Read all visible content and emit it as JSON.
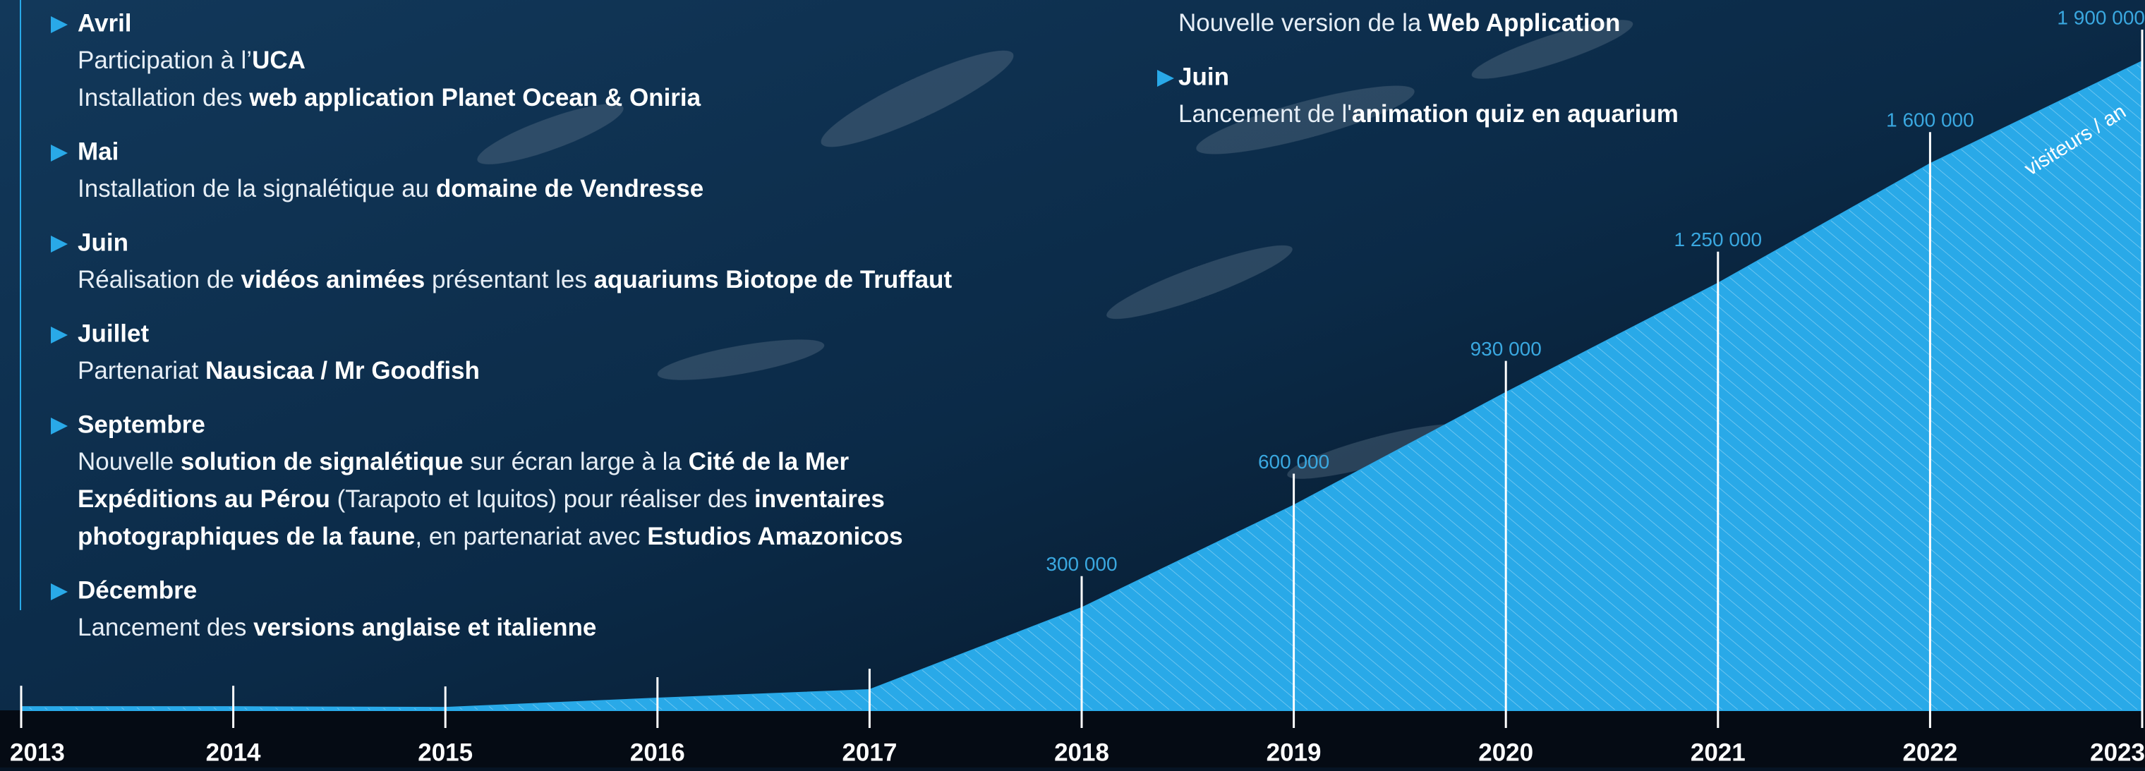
{
  "timeline": {
    "entries": [
      {
        "month": "Avril",
        "lines": [
          [
            {
              "text": "Participation à l’",
              "bold": false
            },
            {
              "text": "UCA",
              "bold": true
            }
          ],
          [
            {
              "text": "Installation des ",
              "bold": false
            },
            {
              "text": "web application Planet Ocean & Oniria",
              "bold": true
            }
          ]
        ]
      },
      {
        "month": "Mai",
        "lines": [
          [
            {
              "text": "Installation de la signalétique au ",
              "bold": false
            },
            {
              "text": "domaine de Vendresse",
              "bold": true
            }
          ]
        ]
      },
      {
        "month": "Juin",
        "lines": [
          [
            {
              "text": "Réalisation de ",
              "bold": false
            },
            {
              "text": "vidéos animées",
              "bold": true
            },
            {
              "text": " présentant les ",
              "bold": false
            },
            {
              "text": "aquariums Biotope de Truffaut",
              "bold": true
            }
          ]
        ]
      },
      {
        "month": "Juillet",
        "lines": [
          [
            {
              "text": "Partenariat ",
              "bold": false
            },
            {
              "text": "Nausicaa / Mr Goodfish",
              "bold": true
            }
          ]
        ]
      },
      {
        "month": "Septembre",
        "lines": [
          [
            {
              "text": "Nouvelle ",
              "bold": false
            },
            {
              "text": "solution de signalétique",
              "bold": true
            },
            {
              "text": " sur écran large à la ",
              "bold": false
            },
            {
              "text": "Cité de la Mer",
              "bold": true
            }
          ],
          [
            {
              "text": "Expéditions au Pérou",
              "bold": true
            },
            {
              "text": " (Tarapoto et Iquitos) pour réaliser des ",
              "bold": false
            },
            {
              "text": "inventaires",
              "bold": true
            }
          ],
          [
            {
              "text": "photographiques de la faune",
              "bold": true
            },
            {
              "text": ", en partenariat avec ",
              "bold": false
            },
            {
              "text": "Estudios Amazonicos",
              "bold": true
            }
          ]
        ]
      },
      {
        "month": "Décembre",
        "lines": [
          [
            {
              "text": "Lancement des ",
              "bold": false
            },
            {
              "text": "versions anglaise et italienne",
              "bold": true
            }
          ]
        ]
      }
    ]
  },
  "highlights": {
    "entries": [
      {
        "lines": [
          [
            {
              "text": "Nouvelle version de la ",
              "bold": false
            },
            {
              "text": "Web Application",
              "bold": true
            }
          ]
        ]
      },
      {
        "month": "Juin",
        "lines": [
          [
            {
              "text": "Lancement de l'",
              "bold": false
            },
            {
              "text": "animation quiz en aquarium",
              "bold": true
            }
          ]
        ]
      }
    ]
  },
  "chart_data": {
    "type": "area",
    "unit_label": "visiteurs / an",
    "categories": [
      "2013",
      "2014",
      "2015",
      "2016",
      "2017",
      "2018",
      "2019",
      "2020",
      "2021",
      "2022",
      "2023"
    ],
    "values": [
      10000,
      10000,
      8000,
      35000,
      60000,
      300000,
      600000,
      930000,
      1250000,
      1600000,
      1900000
    ],
    "value_labels": [
      null,
      null,
      null,
      null,
      null,
      "300 000",
      "600 000",
      "930 000",
      "1 250 000",
      "1 600 000",
      "1 900 000"
    ],
    "ylim": [
      0,
      1900000
    ],
    "color": "#29a9e8",
    "label_color": "#3aa8e0"
  }
}
